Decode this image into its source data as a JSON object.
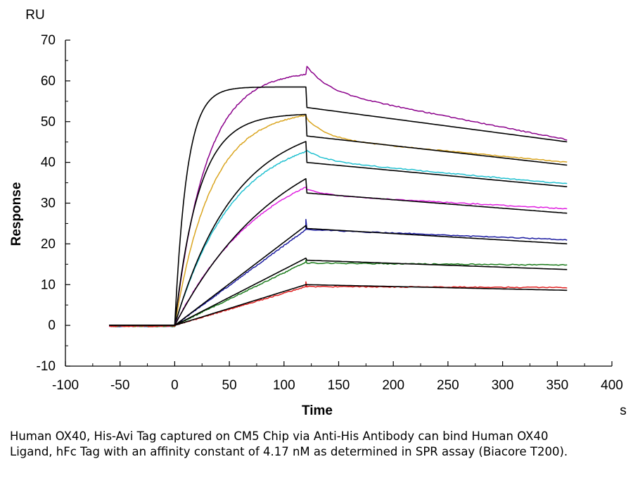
{
  "chart_data": {
    "type": "line",
    "title": "",
    "xlabel": "Time",
    "ylabel": "Response",
    "x_unit": "s",
    "y_unit": "RU",
    "xlim": [
      -100,
      400
    ],
    "ylim": [
      -10,
      70
    ],
    "x_ticks": [
      -100,
      -50,
      0,
      50,
      100,
      150,
      200,
      250,
      300,
      350,
      400
    ],
    "y_ticks": [
      -10,
      0,
      10,
      20,
      30,
      40,
      50,
      60,
      70
    ],
    "association_end": 120,
    "grid": false,
    "legend": "none",
    "series": [
      {
        "color": "#8b008b",
        "kind": "measured",
        "plateau": 62.5,
        "k": 0.035,
        "spike": 0,
        "dissociation_start": 58,
        "dissociation_end": 45.5,
        "fast_phase": 6
      },
      {
        "color": "#000000",
        "kind": "fit",
        "plateau": 58.5,
        "k": 0.09,
        "spike": 0,
        "dissociation_start": 53.5,
        "dissociation_end": 45.0,
        "fast_phase": 0
      },
      {
        "color": "#daa520",
        "kind": "measured",
        "plateau": 53.0,
        "k": 0.03,
        "spike": 0,
        "dissociation_start": 46,
        "dissociation_end": 40.0,
        "fast_phase": 5
      },
      {
        "color": "#000000",
        "kind": "fit",
        "plateau": 52.0,
        "k": 0.045,
        "spike": 0,
        "dissociation_start": 46.5,
        "dissociation_end": 39.3,
        "fast_phase": 0
      },
      {
        "color": "#20c0d0",
        "kind": "measured",
        "plateau": 47.5,
        "k": 0.019,
        "spike": 0,
        "dissociation_start": 40.5,
        "dissociation_end": 34.7,
        "fast_phase": 2.5
      },
      {
        "color": "#000000",
        "kind": "fit",
        "plateau": 51.0,
        "k": 0.018,
        "spike": 0,
        "dissociation_start": 40.0,
        "dissociation_end": 34.0,
        "fast_phase": 0
      },
      {
        "color": "#e020e0",
        "kind": "measured",
        "plateau": 44.5,
        "k": 0.012,
        "spike": 0,
        "dissociation_start": 32.0,
        "dissociation_end": 28.6,
        "fast_phase": 1.5
      },
      {
        "color": "#000000",
        "kind": "fit",
        "plateau": 51.5,
        "k": 0.01,
        "spike": 0,
        "dissociation_start": 32.5,
        "dissociation_end": 27.5,
        "fast_phase": 0
      },
      {
        "color": "#1a1aa0",
        "kind": "measured",
        "plateau": 23.5,
        "k": 0,
        "spike": 2.5,
        "dissociation_start": 23.5,
        "dissociation_end": 21.0,
        "fast_phase": 0
      },
      {
        "color": "#000000",
        "kind": "fit",
        "plateau": 24.5,
        "k": 0,
        "spike": 0,
        "dissociation_start": 23.8,
        "dissociation_end": 20.0,
        "fast_phase": 0
      },
      {
        "color": "#1a7a1a",
        "kind": "measured",
        "plateau": 15.5,
        "k": 0,
        "spike": 0.5,
        "dissociation_start": 15.3,
        "dissociation_end": 14.8,
        "fast_phase": 0
      },
      {
        "color": "#000000",
        "kind": "fit",
        "plateau": 16.5,
        "k": 0,
        "spike": 0,
        "dissociation_start": 16.0,
        "dissociation_end": 13.7,
        "fast_phase": 0
      },
      {
        "color": "#e02020",
        "kind": "measured",
        "plateau": 9.5,
        "k": 0,
        "spike": 1.2,
        "dissociation_start": 9.5,
        "dissociation_end": 9.3,
        "fast_phase": 0
      },
      {
        "color": "#000000",
        "kind": "fit",
        "plateau": 10.0,
        "k": 0,
        "spike": 0,
        "dissociation_start": 10.0,
        "dissociation_end": 8.6,
        "fast_phase": 0
      }
    ]
  },
  "caption": "Human OX40, His-Avi Tag captured on CM5 Chip via Anti-His Antibody can bind Human OX40 Ligand, hFc Tag with an affinity constant of 4.17 nM as determined in SPR assay (Biacore T200)."
}
